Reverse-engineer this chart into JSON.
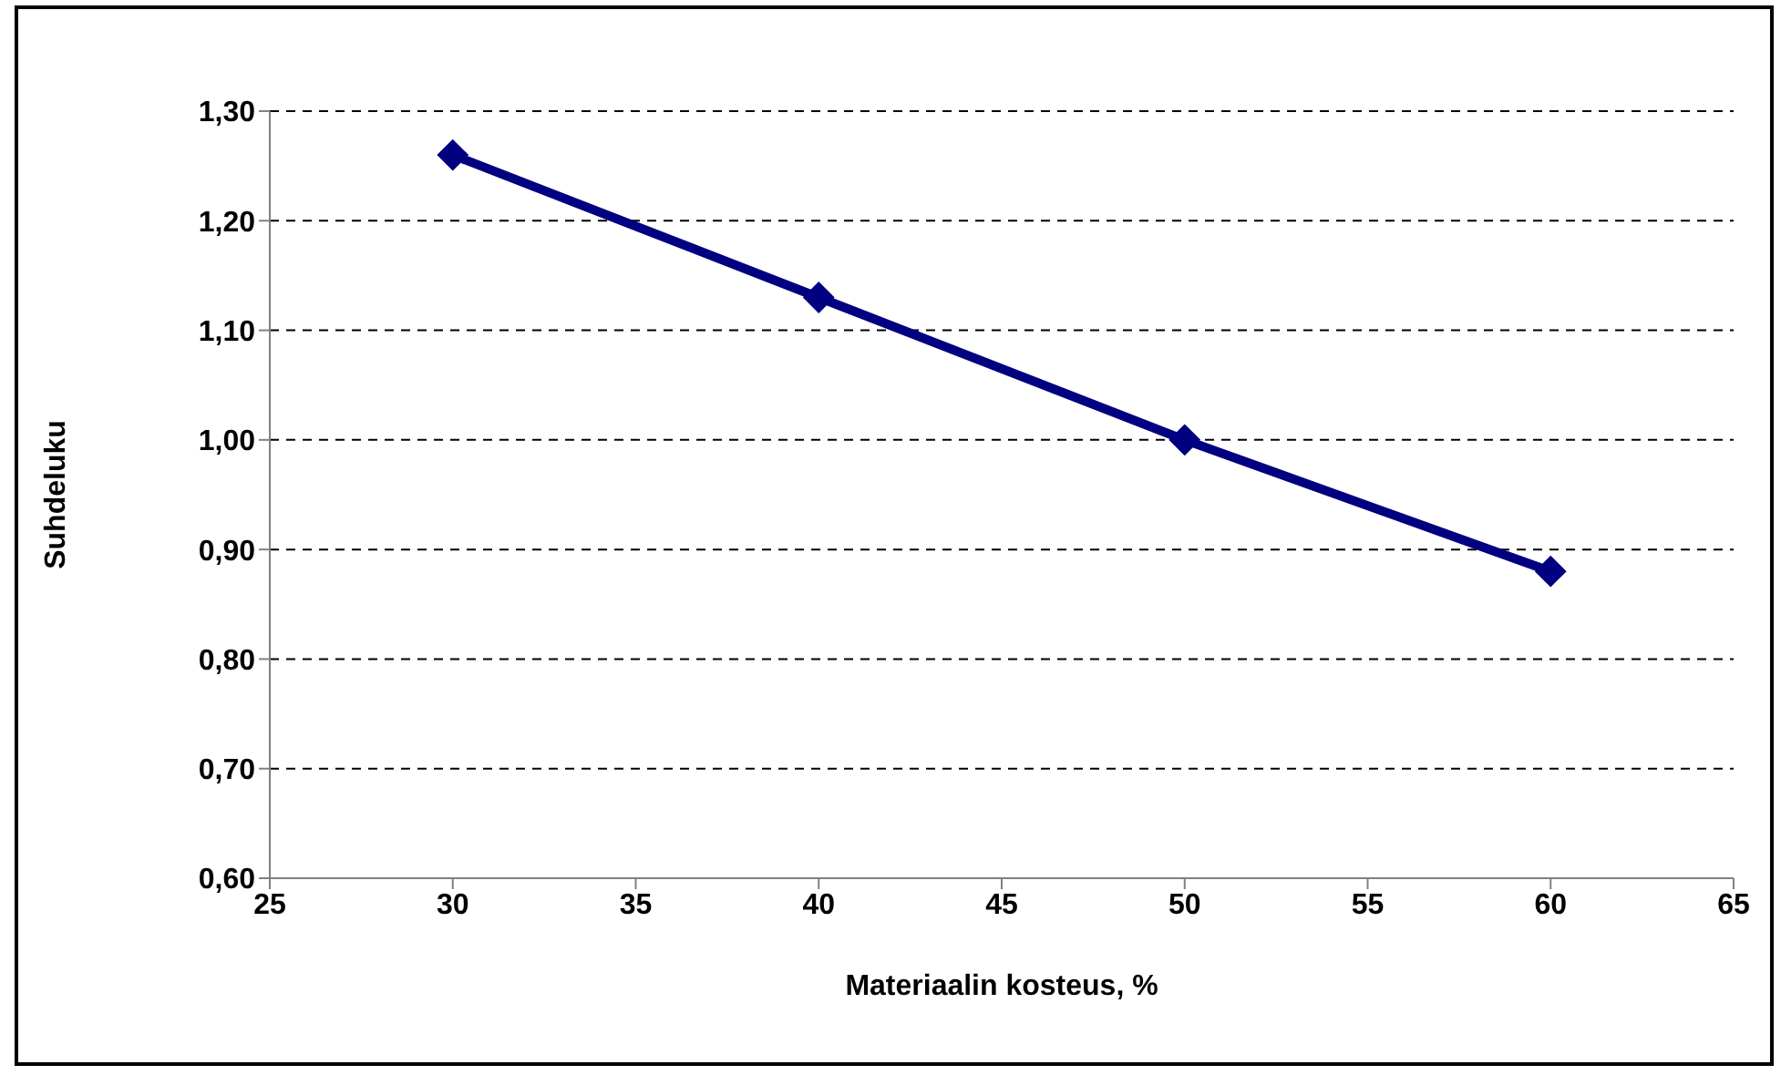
{
  "chart_data": {
    "type": "line",
    "xlabel": "Materiaalin kosteus, %",
    "ylabel": "Suhdeluku",
    "x": [
      30,
      40,
      50,
      60
    ],
    "series": [
      {
        "color": "#000080",
        "values": [
          1.26,
          1.13,
          1.0,
          0.88
        ]
      }
    ],
    "xlim": [
      25,
      65
    ],
    "xticks": [
      25,
      30,
      35,
      40,
      45,
      50,
      55,
      60,
      65
    ],
    "ylim": [
      0.6,
      1.3
    ],
    "yticks": [
      {
        "value": 0.6,
        "label": "0,60"
      },
      {
        "value": 0.7,
        "label": "0,70"
      },
      {
        "value": 0.8,
        "label": "0,80"
      },
      {
        "value": 0.9,
        "label": "0,90"
      },
      {
        "value": 1.0,
        "label": "1,00"
      },
      {
        "value": 1.1,
        "label": "1,10"
      },
      {
        "value": 1.2,
        "label": "1,20"
      },
      {
        "value": 1.3,
        "label": "1,30"
      }
    ],
    "grid": "y",
    "marker": "diamond",
    "line_style": "solid",
    "legend": false
  }
}
